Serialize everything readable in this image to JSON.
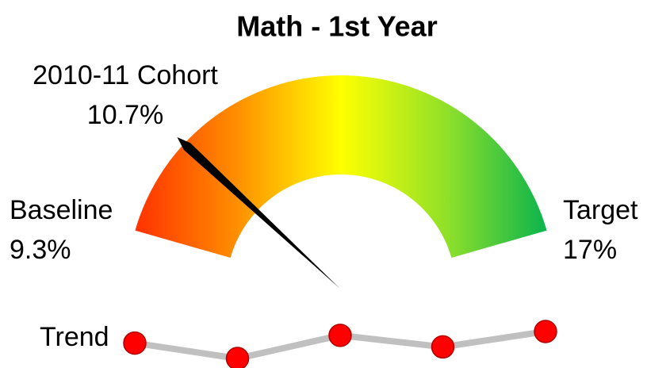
{
  "chart_data": {
    "type": "gauge",
    "title": "Math - 1st Year",
    "baseline": {
      "label": "Baseline",
      "value": 9.3,
      "value_label": "9.3%"
    },
    "target": {
      "label": "Target",
      "value": 17,
      "value_label": "17%"
    },
    "cohort": {
      "label": "2010-11 Cohort",
      "value": 10.7,
      "value_label": "10.7%",
      "color": "#000000"
    },
    "colors": [
      "#ff2a00",
      "#ff8c00",
      "#ffff00",
      "#8ee02a",
      "#00b050"
    ],
    "trend": {
      "label": "Trend",
      "values": [
        10.3,
        9.5,
        10.7,
        10.1,
        10.9
      ],
      "color": "#ff0000",
      "line_color": "#c0c0c0"
    }
  }
}
